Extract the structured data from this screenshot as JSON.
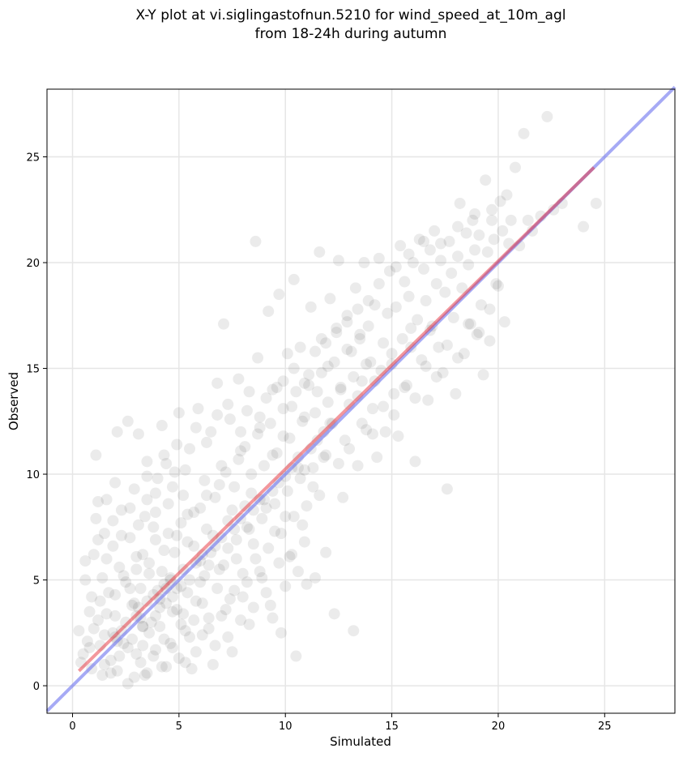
{
  "chart_data": {
    "type": "scatter",
    "title_lines": [
      "X-Y plot at vi.siglingastofnun.5210 for wind_speed_at_10m_agl",
      "from 18-24h during autumn"
    ],
    "xlabel": "Simulated",
    "ylabel": "Observed",
    "xlim": [
      -1.2,
      28.3
    ],
    "ylim": [
      -1.3,
      28.2
    ],
    "xticks": [
      0,
      5,
      10,
      15,
      20,
      25
    ],
    "yticks": [
      0,
      5,
      10,
      15,
      20,
      25
    ],
    "grid": true,
    "points_color": "#000000",
    "points_alpha": 0.08,
    "points": [
      [
        0.3,
        2.6
      ],
      [
        0.4,
        1.1
      ],
      [
        0.5,
        1.5
      ],
      [
        0.6,
        5.0
      ],
      [
        0.6,
        5.9
      ],
      [
        0.7,
        2.1
      ],
      [
        0.8,
        3.5
      ],
      [
        0.9,
        4.2
      ],
      [
        0.9,
        0.8
      ],
      [
        1.0,
        6.2
      ],
      [
        1.1,
        7.9
      ],
      [
        1.1,
        10.9
      ],
      [
        1.2,
        8.7
      ],
      [
        1.2,
        3.1
      ],
      [
        1.3,
        1.9
      ],
      [
        1.4,
        5.1
      ],
      [
        1.4,
        0.5
      ],
      [
        1.5,
        7.2
      ],
      [
        1.5,
        2.4
      ],
      [
        1.6,
        8.8
      ],
      [
        1.7,
        4.4
      ],
      [
        1.8,
        1.2
      ],
      [
        1.9,
        6.6
      ],
      [
        2.0,
        9.6
      ],
      [
        2.0,
        3.3
      ],
      [
        2.1,
        12.0
      ],
      [
        2.1,
        0.7
      ],
      [
        2.2,
        5.6
      ],
      [
        2.3,
        8.3
      ],
      [
        2.4,
        2.0
      ],
      [
        2.5,
        4.9
      ],
      [
        2.6,
        12.5
      ],
      [
        2.6,
        0.1
      ],
      [
        2.7,
        7.0
      ],
      [
        2.8,
        3.8
      ],
      [
        2.9,
        9.3
      ],
      [
        3.0,
        1.5
      ],
      [
        3.0,
        6.1
      ],
      [
        3.1,
        11.9
      ],
      [
        3.2,
        4.6
      ],
      [
        3.3,
        2.8
      ],
      [
        3.4,
        8.0
      ],
      [
        3.5,
        0.6
      ],
      [
        3.5,
        10.6
      ],
      [
        3.6,
        5.3
      ],
      [
        3.7,
        3.0
      ],
      [
        3.8,
        7.5
      ],
      [
        3.9,
        1.7
      ],
      [
        4.0,
        9.8
      ],
      [
        4.1,
        4.1
      ],
      [
        4.2,
        12.3
      ],
      [
        4.3,
        6.4
      ],
      [
        4.3,
        2.2
      ],
      [
        4.4,
        0.9
      ],
      [
        4.5,
        8.6
      ],
      [
        4.6,
        5.0
      ],
      [
        4.7,
        3.5
      ],
      [
        4.8,
        10.1
      ],
      [
        4.9,
        7.1
      ],
      [
        5.0,
        1.3
      ],
      [
        5.0,
        12.9
      ],
      [
        5.1,
        4.7
      ],
      [
        5.2,
        9.0
      ],
      [
        5.3,
        2.6
      ],
      [
        5.4,
        6.8
      ],
      [
        5.5,
        11.2
      ],
      [
        5.6,
        0.8
      ],
      [
        5.7,
        8.2
      ],
      [
        5.8,
        4.0
      ],
      [
        5.9,
        13.1
      ],
      [
        6.0,
        5.9
      ],
      [
        6.1,
        2.4
      ],
      [
        6.2,
        9.7
      ],
      [
        6.3,
        7.4
      ],
      [
        6.4,
        3.2
      ],
      [
        6.5,
        12.0
      ],
      [
        6.6,
        1.0
      ],
      [
        6.7,
        8.9
      ],
      [
        6.8,
        14.3
      ],
      [
        6.9,
        5.5
      ],
      [
        7.0,
        10.4
      ],
      [
        7.1,
        17.1
      ],
      [
        7.2,
        3.6
      ],
      [
        7.3,
        7.8
      ],
      [
        7.4,
        12.6
      ],
      [
        7.5,
        1.6
      ],
      [
        7.6,
        9.4
      ],
      [
        7.7,
        6.0
      ],
      [
        7.8,
        14.5
      ],
      [
        7.9,
        11.1
      ],
      [
        8.0,
        4.2
      ],
      [
        8.1,
        8.5
      ],
      [
        8.2,
        13.0
      ],
      [
        8.3,
        2.9
      ],
      [
        8.4,
        10.0
      ],
      [
        8.5,
        6.7
      ],
      [
        8.6,
        21.0
      ],
      [
        8.7,
        15.5
      ],
      [
        8.8,
        12.2
      ],
      [
        8.9,
        5.1
      ],
      [
        9.0,
        8.8
      ],
      [
        9.1,
        13.6
      ],
      [
        9.2,
        17.7
      ],
      [
        9.3,
        3.8
      ],
      [
        9.4,
        10.9
      ],
      [
        9.5,
        7.3
      ],
      [
        9.6,
        14.1
      ],
      [
        9.7,
        18.5
      ],
      [
        9.8,
        2.5
      ],
      [
        9.9,
        11.8
      ],
      [
        10.0,
        8.0
      ],
      [
        10.1,
        15.7
      ],
      [
        10.2,
        6.1
      ],
      [
        10.3,
        13.2
      ],
      [
        10.4,
        19.2
      ],
      [
        10.5,
        1.4
      ],
      [
        10.6,
        10.3
      ],
      [
        10.7,
        16.0
      ],
      [
        10.8,
        7.6
      ],
      [
        10.9,
        12.7
      ],
      [
        11.0,
        4.8
      ],
      [
        11.1,
        14.7
      ],
      [
        11.2,
        17.9
      ],
      [
        11.3,
        9.4
      ],
      [
        11.4,
        5.1
      ],
      [
        11.5,
        13.9
      ],
      [
        11.6,
        20.5
      ],
      [
        11.7,
        16.4
      ],
      [
        11.8,
        10.8
      ],
      [
        11.9,
        6.3
      ],
      [
        12.0,
        15.1
      ],
      [
        12.1,
        18.3
      ],
      [
        12.2,
        12.4
      ],
      [
        12.3,
        3.4
      ],
      [
        12.4,
        16.9
      ],
      [
        12.5,
        20.1
      ],
      [
        12.6,
        14.0
      ],
      [
        12.7,
        8.9
      ],
      [
        12.8,
        11.6
      ],
      [
        12.9,
        17.5
      ],
      [
        13.0,
        13.3
      ],
      [
        13.1,
        15.8
      ],
      [
        13.2,
        2.6
      ],
      [
        13.3,
        18.8
      ],
      [
        13.4,
        10.4
      ],
      [
        13.5,
        16.6
      ],
      [
        13.6,
        14.4
      ],
      [
        13.7,
        20.0
      ],
      [
        13.8,
        12.1
      ],
      [
        13.9,
        17.0
      ],
      [
        14.0,
        15.3
      ],
      [
        14.1,
        13.1
      ],
      [
        14.2,
        18.0
      ],
      [
        14.3,
        10.8
      ],
      [
        14.4,
        20.2
      ],
      [
        14.5,
        14.9
      ],
      [
        14.6,
        16.2
      ],
      [
        14.7,
        12.0
      ],
      [
        14.8,
        17.6
      ],
      [
        14.9,
        19.6
      ],
      [
        15.0,
        15.7
      ],
      [
        15.1,
        13.8
      ],
      [
        15.2,
        17.9
      ],
      [
        15.3,
        11.8
      ],
      [
        15.4,
        20.8
      ],
      [
        15.5,
        16.4
      ],
      [
        15.6,
        19.1
      ],
      [
        15.7,
        14.2
      ],
      [
        15.8,
        18.4
      ],
      [
        15.9,
        16.9
      ],
      [
        16.0,
        20.0
      ],
      [
        16.1,
        10.6
      ],
      [
        16.2,
        17.3
      ],
      [
        16.3,
        21.1
      ],
      [
        16.4,
        15.4
      ],
      [
        16.5,
        19.7
      ],
      [
        16.6,
        18.2
      ],
      [
        16.7,
        13.5
      ],
      [
        16.8,
        20.6
      ],
      [
        16.9,
        17.0
      ],
      [
        17.0,
        21.5
      ],
      [
        17.1,
        19.0
      ],
      [
        17.2,
        16.0
      ],
      [
        17.3,
        20.1
      ],
      [
        17.4,
        14.8
      ],
      [
        17.5,
        18.6
      ],
      [
        17.6,
        9.3
      ],
      [
        17.7,
        21.0
      ],
      [
        17.8,
        19.5
      ],
      [
        17.9,
        17.4
      ],
      [
        18.0,
        13.8
      ],
      [
        18.1,
        20.3
      ],
      [
        18.2,
        22.8
      ],
      [
        18.3,
        18.8
      ],
      [
        18.4,
        15.7
      ],
      [
        18.5,
        21.4
      ],
      [
        18.6,
        19.9
      ],
      [
        18.7,
        17.1
      ],
      [
        18.8,
        22.0
      ],
      [
        18.9,
        20.6
      ],
      [
        19.0,
        16.6
      ],
      [
        19.1,
        21.3
      ],
      [
        19.2,
        18.0
      ],
      [
        19.3,
        14.7
      ],
      [
        19.4,
        23.9
      ],
      [
        19.5,
        20.5
      ],
      [
        19.6,
        16.3
      ],
      [
        19.7,
        22.5
      ],
      [
        19.8,
        21.1
      ],
      [
        19.9,
        19.0
      ],
      [
        20.0,
        18.9
      ],
      [
        20.1,
        22.9
      ],
      [
        20.2,
        21.5
      ],
      [
        20.3,
        17.2
      ],
      [
        20.4,
        23.2
      ],
      [
        20.5,
        20.9
      ],
      [
        20.6,
        22.0
      ],
      [
        20.8,
        24.5
      ],
      [
        21.0,
        20.8
      ],
      [
        21.2,
        26.1
      ],
      [
        21.4,
        22.0
      ],
      [
        21.6,
        21.5
      ],
      [
        22.0,
        22.2
      ],
      [
        22.3,
        26.9
      ],
      [
        22.6,
        22.5
      ],
      [
        23.0,
        22.8
      ],
      [
        24.0,
        21.7
      ],
      [
        24.6,
        22.8
      ],
      [
        0.8,
        1.8
      ],
      [
        1.0,
        2.7
      ],
      [
        1.3,
        4.0
      ],
      [
        1.6,
        3.4
      ],
      [
        1.9,
        2.5
      ],
      [
        2.2,
        1.4
      ],
      [
        2.5,
        3.0
      ],
      [
        2.8,
        2.2
      ],
      [
        3.1,
        3.7
      ],
      [
        3.3,
        1.9
      ],
      [
        3.6,
        2.5
      ],
      [
        3.9,
        3.3
      ],
      [
        4.1,
        2.8
      ],
      [
        4.4,
        3.9
      ],
      [
        4.6,
        2.0
      ],
      [
        4.9,
        3.6
      ],
      [
        5.1,
        2.9
      ],
      [
        5.4,
        4.4
      ],
      [
        5.7,
        3.1
      ],
      [
        6.0,
        4.9
      ],
      [
        2.0,
        4.3
      ],
      [
        2.4,
        5.2
      ],
      [
        2.7,
        4.6
      ],
      [
        3.0,
        5.5
      ],
      [
        3.3,
        6.2
      ],
      [
        3.6,
        5.8
      ],
      [
        3.9,
        6.9
      ],
      [
        4.2,
        5.4
      ],
      [
        4.5,
        7.2
      ],
      [
        4.8,
        6.3
      ],
      [
        5.1,
        7.7
      ],
      [
        5.4,
        8.1
      ],
      [
        5.7,
        6.6
      ],
      [
        6.0,
        8.4
      ],
      [
        6.3,
        9.0
      ],
      [
        6.6,
        7.1
      ],
      [
        6.9,
        9.5
      ],
      [
        7.2,
        10.1
      ],
      [
        7.5,
        8.3
      ],
      [
        7.8,
        10.7
      ],
      [
        8.1,
        11.3
      ],
      [
        8.4,
        9.1
      ],
      [
        8.7,
        11.9
      ],
      [
        9.0,
        10.4
      ],
      [
        9.3,
        12.4
      ],
      [
        9.6,
        11.0
      ],
      [
        9.9,
        13.1
      ],
      [
        10.2,
        11.7
      ],
      [
        10.5,
        13.9
      ],
      [
        10.8,
        12.5
      ],
      [
        11.1,
        14.2
      ],
      [
        11.4,
        12.9
      ],
      [
        11.7,
        14.8
      ],
      [
        12.0,
        13.4
      ],
      [
        12.3,
        15.3
      ],
      [
        12.6,
        14.1
      ],
      [
        12.9,
        15.9
      ],
      [
        13.2,
        14.6
      ],
      [
        13.5,
        16.4
      ],
      [
        13.8,
        15.2
      ],
      [
        6.2,
        5.2
      ],
      [
        6.5,
        6.3
      ],
      [
        6.8,
        4.6
      ],
      [
        7.1,
        5.7
      ],
      [
        7.4,
        4.1
      ],
      [
        7.7,
        6.9
      ],
      [
        8.0,
        5.3
      ],
      [
        8.3,
        7.4
      ],
      [
        8.6,
        6.0
      ],
      [
        8.9,
        7.9
      ],
      [
        9.2,
        6.5
      ],
      [
        9.5,
        8.6
      ],
      [
        9.8,
        7.2
      ],
      [
        10.1,
        9.2
      ],
      [
        10.4,
        8.0
      ],
      [
        10.7,
        9.8
      ],
      [
        11.0,
        8.5
      ],
      [
        11.3,
        10.3
      ],
      [
        11.6,
        9.0
      ],
      [
        11.9,
        10.9
      ],
      [
        5.2,
        3.4
      ],
      [
        5.5,
        2.3
      ],
      [
        5.8,
        1.6
      ],
      [
        6.1,
        3.9
      ],
      [
        6.4,
        2.7
      ],
      [
        6.7,
        1.9
      ],
      [
        7.0,
        3.3
      ],
      [
        7.3,
        2.3
      ],
      [
        7.6,
        4.5
      ],
      [
        7.9,
        3.1
      ],
      [
        8.2,
        4.9
      ],
      [
        8.5,
        3.7
      ],
      [
        8.8,
        5.4
      ],
      [
        9.1,
        4.4
      ],
      [
        9.4,
        3.2
      ],
      [
        9.7,
        5.8
      ],
      [
        10.0,
        4.7
      ],
      [
        10.3,
        6.2
      ],
      [
        10.6,
        5.4
      ],
      [
        10.9,
        6.8
      ],
      [
        1.5,
        1.0
      ],
      [
        1.8,
        0.6
      ],
      [
        2.1,
        2.1
      ],
      [
        2.9,
        0.4
      ],
      [
        3.2,
        1.1
      ],
      [
        3.4,
        0.5
      ],
      [
        3.8,
        1.4
      ],
      [
        4.2,
        0.9
      ],
      [
        4.7,
        1.8
      ],
      [
        5.3,
        1.1
      ],
      [
        3.5,
        8.8
      ],
      [
        3.9,
        9.1
      ],
      [
        4.4,
        10.5
      ],
      [
        4.9,
        11.4
      ],
      [
        5.3,
        10.2
      ],
      [
        5.8,
        12.2
      ],
      [
        6.3,
        11.5
      ],
      [
        6.8,
        12.8
      ],
      [
        7.3,
        13.3
      ],
      [
        7.9,
        12.0
      ],
      [
        8.3,
        13.9
      ],
      [
        8.8,
        12.7
      ],
      [
        9.4,
        14.0
      ],
      [
        9.9,
        14.4
      ],
      [
        10.4,
        15.0
      ],
      [
        10.9,
        14.3
      ],
      [
        11.4,
        15.8
      ],
      [
        11.9,
        16.2
      ],
      [
        12.4,
        16.7
      ],
      [
        12.9,
        17.2
      ],
      [
        13.4,
        17.8
      ],
      [
        13.9,
        18.2
      ],
      [
        14.4,
        19.0
      ],
      [
        15.2,
        19.8
      ],
      [
        15.8,
        20.4
      ],
      [
        16.5,
        21.0
      ],
      [
        17.3,
        20.9
      ],
      [
        18.1,
        21.7
      ],
      [
        18.9,
        22.3
      ],
      [
        19.7,
        22.0
      ],
      [
        12.5,
        10.5
      ],
      [
        13.0,
        11.2
      ],
      [
        13.6,
        12.4
      ],
      [
        14.1,
        11.9
      ],
      [
        14.6,
        13.2
      ],
      [
        15.1,
        12.8
      ],
      [
        15.6,
        14.1
      ],
      [
        16.1,
        13.6
      ],
      [
        16.6,
        15.1
      ],
      [
        17.1,
        14.6
      ],
      [
        17.6,
        16.1
      ],
      [
        18.1,
        15.5
      ],
      [
        18.6,
        17.1
      ],
      [
        19.1,
        16.7
      ],
      [
        19.6,
        17.8
      ],
      [
        13.4,
        13.7
      ],
      [
        14.2,
        14.4
      ],
      [
        15.0,
        15.2
      ],
      [
        15.9,
        16.0
      ],
      [
        16.8,
        16.8
      ],
      [
        4.0,
        4.5
      ],
      [
        4.3,
        4.8
      ],
      [
        4.6,
        5.1
      ],
      [
        4.9,
        4.6
      ],
      [
        5.2,
        5.5
      ],
      [
        5.5,
        5.0
      ],
      [
        5.8,
        5.8
      ],
      [
        6.1,
        6.2
      ],
      [
        6.4,
        5.7
      ],
      [
        6.7,
        6.6
      ],
      [
        7.0,
        7.0
      ],
      [
        7.3,
        6.5
      ],
      [
        7.6,
        7.4
      ],
      [
        7.9,
        7.9
      ],
      [
        8.2,
        7.5
      ],
      [
        8.5,
        8.3
      ],
      [
        8.8,
        8.8
      ],
      [
        9.1,
        8.4
      ],
      [
        9.4,
        9.2
      ],
      [
        9.7,
        9.6
      ],
      [
        10.0,
        9.9
      ],
      [
        10.3,
        10.3
      ],
      [
        10.6,
        10.8
      ],
      [
        10.9,
        10.2
      ],
      [
        11.2,
        11.2
      ],
      [
        11.5,
        11.6
      ],
      [
        11.8,
        12.0
      ],
      [
        12.1,
        12.4
      ],
      [
        3.0,
        3.3
      ],
      [
        3.3,
        2.8
      ],
      [
        2.0,
        2.3
      ],
      [
        2.3,
        2.6
      ],
      [
        2.6,
        1.8
      ],
      [
        2.9,
        3.9
      ],
      [
        3.2,
        3.2
      ],
      [
        3.5,
        4.0
      ],
      [
        3.8,
        4.3
      ],
      [
        4.1,
        3.7
      ],
      [
        4.4,
        4.6
      ],
      [
        4.7,
        4.2
      ],
      [
        1.2,
        6.9
      ],
      [
        1.6,
        6.0
      ],
      [
        1.9,
        7.8
      ],
      [
        2.3,
        7.1
      ],
      [
        2.7,
        8.4
      ],
      [
        3.1,
        7.6
      ],
      [
        3.5,
        9.9
      ],
      [
        3.9,
        8.2
      ],
      [
        4.3,
        10.9
      ],
      [
        4.7,
        9.4
      ]
    ],
    "regression_line": {
      "x": [
        0.3,
        24.5
      ],
      "y": [
        0.7,
        24.5
      ],
      "color": "#e8303a"
    },
    "identity_line": {
      "x": [
        -1.2,
        28.3
      ],
      "y": [
        -1.2,
        28.3
      ],
      "color": "#6b72ee"
    }
  }
}
